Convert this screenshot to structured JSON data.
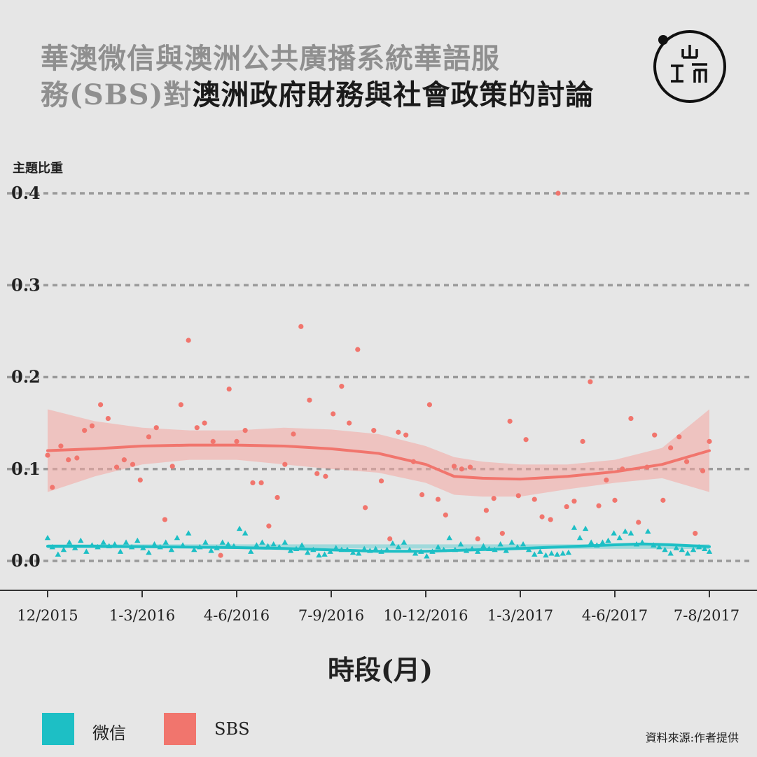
{
  "title": {
    "line1_gray": "華澳微信與澳洲公共廣播系統華語服",
    "line2_gray": "務(SBS)對",
    "line2_dark": "澳洲政府財務與社會政策的討論"
  },
  "logo": {
    "glyph_top": "山",
    "glyph_left": "工",
    "glyph_right": "而"
  },
  "colors": {
    "wechat": "#1dbfc5",
    "sbs": "#f1756d",
    "sbs_band": "#f4a5a1",
    "grid": "#9a9a9a"
  },
  "legend": {
    "wechat_label": "微信",
    "sbs_label": "SBS"
  },
  "source": "資料來源:作者提供",
  "chart_data": {
    "type": "scatter",
    "ylabel": "主題比重",
    "xlabel": "時段(月)",
    "y_ticks": [
      "0.0",
      "0.1",
      "0.2",
      "0.3",
      "0.4"
    ],
    "ylim": [
      0,
      0.4
    ],
    "x_ticks": [
      "12/2015",
      "1-3/2016",
      "4-6/2016",
      "7-9/2016",
      "10-12/2016",
      "1-3/2017",
      "4-6/2017",
      "7-8/2017"
    ],
    "xlim": [
      0,
      7
    ],
    "grid": true,
    "series": [
      {
        "name": "SBS",
        "marker": "circle",
        "points": [
          [
            0,
            0.115
          ],
          [
            0.05,
            0.08
          ],
          [
            0.14,
            0.125
          ],
          [
            0.22,
            0.11
          ],
          [
            0.31,
            0.112
          ],
          [
            0.39,
            0.142
          ],
          [
            0.47,
            0.147
          ],
          [
            0.56,
            0.17
          ],
          [
            0.64,
            0.155
          ],
          [
            0.73,
            0.102
          ],
          [
            0.81,
            0.11
          ],
          [
            0.9,
            0.105
          ],
          [
            0.98,
            0.088
          ],
          [
            1.07,
            0.135
          ],
          [
            1.15,
            0.145
          ],
          [
            1.24,
            0.045
          ],
          [
            1.32,
            0.103
          ],
          [
            1.41,
            0.17
          ],
          [
            1.49,
            0.24
          ],
          [
            1.58,
            0.145
          ],
          [
            1.66,
            0.15
          ],
          [
            1.75,
            0.13
          ],
          [
            1.83,
            0.006
          ],
          [
            1.92,
            0.187
          ],
          [
            2.0,
            0.13
          ],
          [
            2.09,
            0.142
          ],
          [
            2.17,
            0.085
          ],
          [
            2.26,
            0.085
          ],
          [
            2.34,
            0.038
          ],
          [
            2.43,
            0.069
          ],
          [
            2.51,
            0.105
          ],
          [
            2.6,
            0.138
          ],
          [
            2.68,
            0.255
          ],
          [
            2.77,
            0.175
          ],
          [
            2.85,
            0.095
          ],
          [
            2.94,
            0.092
          ],
          [
            3.02,
            0.16
          ],
          [
            3.11,
            0.19
          ],
          [
            3.19,
            0.15
          ],
          [
            3.28,
            0.23
          ],
          [
            3.36,
            0.058
          ],
          [
            3.45,
            0.142
          ],
          [
            3.53,
            0.087
          ],
          [
            3.62,
            0.024
          ],
          [
            3.71,
            0.14
          ],
          [
            3.79,
            0.137
          ],
          [
            3.87,
            0.108
          ],
          [
            3.96,
            0.072
          ],
          [
            4.04,
            0.17
          ],
          [
            4.13,
            0.067
          ],
          [
            4.21,
            0.05
          ],
          [
            4.3,
            0.103
          ],
          [
            4.38,
            0.1
          ],
          [
            4.47,
            0.102
          ],
          [
            4.55,
            0.024
          ],
          [
            4.64,
            0.055
          ],
          [
            4.72,
            0.068
          ],
          [
            4.81,
            0.03
          ],
          [
            4.89,
            0.152
          ],
          [
            4.98,
            0.071
          ],
          [
            5.06,
            0.132
          ],
          [
            5.15,
            0.067
          ],
          [
            5.23,
            0.048
          ],
          [
            5.32,
            0.045
          ],
          [
            5.4,
            0.4
          ],
          [
            5.49,
            0.059
          ],
          [
            5.57,
            0.065
          ],
          [
            5.66,
            0.13
          ],
          [
            5.74,
            0.195
          ],
          [
            5.83,
            0.06
          ],
          [
            5.91,
            0.088
          ],
          [
            6.0,
            0.066
          ],
          [
            6.08,
            0.1
          ],
          [
            6.17,
            0.155
          ],
          [
            6.25,
            0.042
          ],
          [
            6.34,
            0.102
          ],
          [
            6.42,
            0.137
          ],
          [
            6.51,
            0.066
          ],
          [
            6.59,
            0.123
          ],
          [
            6.68,
            0.135
          ],
          [
            6.76,
            0.108
          ],
          [
            6.85,
            0.03
          ],
          [
            6.93,
            0.098
          ],
          [
            7.0,
            0.13
          ]
        ],
        "trend": [
          [
            0,
            0.12
          ],
          [
            0.5,
            0.122
          ],
          [
            1,
            0.125
          ],
          [
            1.5,
            0.126
          ],
          [
            2,
            0.126
          ],
          [
            2.5,
            0.125
          ],
          [
            3,
            0.122
          ],
          [
            3.5,
            0.117
          ],
          [
            4,
            0.105
          ],
          [
            4.3,
            0.092
          ],
          [
            4.6,
            0.09
          ],
          [
            5,
            0.089
          ],
          [
            5.5,
            0.092
          ],
          [
            6,
            0.097
          ],
          [
            6.5,
            0.105
          ],
          [
            7,
            0.12
          ]
        ],
        "band_upper": [
          [
            0,
            0.165
          ],
          [
            0.5,
            0.152
          ],
          [
            1,
            0.145
          ],
          [
            1.5,
            0.142
          ],
          [
            2,
            0.142
          ],
          [
            2.5,
            0.145
          ],
          [
            3,
            0.143
          ],
          [
            3.5,
            0.138
          ],
          [
            4,
            0.125
          ],
          [
            4.3,
            0.113
          ],
          [
            4.6,
            0.108
          ],
          [
            5,
            0.105
          ],
          [
            5.5,
            0.105
          ],
          [
            6,
            0.11
          ],
          [
            6.5,
            0.123
          ],
          [
            7,
            0.165
          ]
        ],
        "band_lower": [
          [
            0,
            0.075
          ],
          [
            0.5,
            0.092
          ],
          [
            1,
            0.105
          ],
          [
            1.5,
            0.11
          ],
          [
            2,
            0.11
          ],
          [
            2.5,
            0.105
          ],
          [
            3,
            0.1
          ],
          [
            3.5,
            0.096
          ],
          [
            4,
            0.085
          ],
          [
            4.3,
            0.072
          ],
          [
            4.6,
            0.07
          ],
          [
            5,
            0.07
          ],
          [
            5.5,
            0.078
          ],
          [
            6,
            0.085
          ],
          [
            6.5,
            0.09
          ],
          [
            7,
            0.075
          ]
        ]
      },
      {
        "name": "微信",
        "marker": "triangle",
        "points": [
          [
            0,
            0.025
          ],
          [
            0.05,
            0.015
          ],
          [
            0.11,
            0.007
          ],
          [
            0.17,
            0.012
          ],
          [
            0.23,
            0.02
          ],
          [
            0.29,
            0.014
          ],
          [
            0.35,
            0.022
          ],
          [
            0.41,
            0.01
          ],
          [
            0.47,
            0.017
          ],
          [
            0.53,
            0.015
          ],
          [
            0.59,
            0.02
          ],
          [
            0.65,
            0.016
          ],
          [
            0.71,
            0.018
          ],
          [
            0.77,
            0.01
          ],
          [
            0.83,
            0.02
          ],
          [
            0.89,
            0.015
          ],
          [
            0.95,
            0.022
          ],
          [
            1.01,
            0.014
          ],
          [
            1.07,
            0.009
          ],
          [
            1.13,
            0.018
          ],
          [
            1.19,
            0.015
          ],
          [
            1.25,
            0.02
          ],
          [
            1.31,
            0.012
          ],
          [
            1.37,
            0.025
          ],
          [
            1.43,
            0.017
          ],
          [
            1.49,
            0.03
          ],
          [
            1.55,
            0.012
          ],
          [
            1.61,
            0.015
          ],
          [
            1.67,
            0.02
          ],
          [
            1.73,
            0.011
          ],
          [
            1.79,
            0.014
          ],
          [
            1.85,
            0.02
          ],
          [
            1.91,
            0.018
          ],
          [
            1.97,
            0.016
          ],
          [
            2.03,
            0.035
          ],
          [
            2.09,
            0.03
          ],
          [
            2.15,
            0.01
          ],
          [
            2.21,
            0.017
          ],
          [
            2.27,
            0.02
          ],
          [
            2.33,
            0.016
          ],
          [
            2.39,
            0.018
          ],
          [
            2.45,
            0.015
          ],
          [
            2.51,
            0.02
          ],
          [
            2.57,
            0.011
          ],
          [
            2.63,
            0.013
          ],
          [
            2.69,
            0.017
          ],
          [
            2.75,
            0.009
          ],
          [
            2.81,
            0.012
          ],
          [
            2.87,
            0.006
          ],
          [
            2.93,
            0.007
          ],
          [
            2.99,
            0.01
          ],
          [
            3.05,
            0.014
          ],
          [
            3.11,
            0.012
          ],
          [
            3.17,
            0.012
          ],
          [
            3.23,
            0.009
          ],
          [
            3.29,
            0.008
          ],
          [
            3.35,
            0.013
          ],
          [
            3.41,
            0.011
          ],
          [
            3.47,
            0.013
          ],
          [
            3.53,
            0.01
          ],
          [
            3.59,
            0.012
          ],
          [
            3.65,
            0.019
          ],
          [
            3.71,
            0.015
          ],
          [
            3.77,
            0.02
          ],
          [
            3.83,
            0.012
          ],
          [
            3.89,
            0.008
          ],
          [
            3.95,
            0.01
          ],
          [
            4.01,
            0.005
          ],
          [
            4.07,
            0.01
          ],
          [
            4.13,
            0.015
          ],
          [
            4.19,
            0.012
          ],
          [
            4.25,
            0.025
          ],
          [
            4.31,
            0.012
          ],
          [
            4.37,
            0.018
          ],
          [
            4.43,
            0.011
          ],
          [
            4.49,
            0.013
          ],
          [
            4.55,
            0.01
          ],
          [
            4.61,
            0.016
          ],
          [
            4.67,
            0.013
          ],
          [
            4.73,
            0.012
          ],
          [
            4.79,
            0.018
          ],
          [
            4.85,
            0.011
          ],
          [
            4.91,
            0.02
          ],
          [
            4.97,
            0.015
          ],
          [
            5.03,
            0.018
          ],
          [
            5.09,
            0.012
          ],
          [
            5.15,
            0.007
          ],
          [
            5.21,
            0.01
          ],
          [
            5.27,
            0.006
          ],
          [
            5.33,
            0.008
          ],
          [
            5.39,
            0.007
          ],
          [
            5.45,
            0.008
          ],
          [
            5.51,
            0.009
          ],
          [
            5.57,
            0.036
          ],
          [
            5.63,
            0.025
          ],
          [
            5.69,
            0.035
          ],
          [
            5.75,
            0.02
          ],
          [
            5.81,
            0.017
          ],
          [
            5.87,
            0.02
          ],
          [
            5.93,
            0.022
          ],
          [
            5.99,
            0.03
          ],
          [
            6.05,
            0.025
          ],
          [
            6.11,
            0.032
          ],
          [
            6.17,
            0.03
          ],
          [
            6.23,
            0.018
          ],
          [
            6.29,
            0.02
          ],
          [
            6.35,
            0.032
          ],
          [
            6.41,
            0.017
          ],
          [
            6.47,
            0.015
          ],
          [
            6.53,
            0.012
          ],
          [
            6.59,
            0.008
          ],
          [
            6.65,
            0.014
          ],
          [
            6.71,
            0.012
          ],
          [
            6.77,
            0.008
          ],
          [
            6.83,
            0.012
          ],
          [
            6.89,
            0.015
          ],
          [
            6.95,
            0.013
          ],
          [
            7.0,
            0.01
          ]
        ],
        "trend": [
          [
            0,
            0.016
          ],
          [
            0.5,
            0.016
          ],
          [
            1,
            0.0155
          ],
          [
            1.5,
            0.015
          ],
          [
            2,
            0.0145
          ],
          [
            2.5,
            0.0135
          ],
          [
            3,
            0.012
          ],
          [
            3.5,
            0.0105
          ],
          [
            4,
            0.0105
          ],
          [
            4.5,
            0.012
          ],
          [
            5,
            0.0135
          ],
          [
            5.5,
            0.0155
          ],
          [
            6,
            0.0175
          ],
          [
            6.3,
            0.0185
          ],
          [
            6.6,
            0.0175
          ],
          [
            7,
            0.0155
          ]
        ],
        "band_upper": [
          [
            0,
            0.018
          ],
          [
            7,
            0.018
          ]
        ],
        "band_lower": [
          [
            0,
            0.014
          ],
          [
            7,
            0.013
          ]
        ]
      }
    ]
  }
}
